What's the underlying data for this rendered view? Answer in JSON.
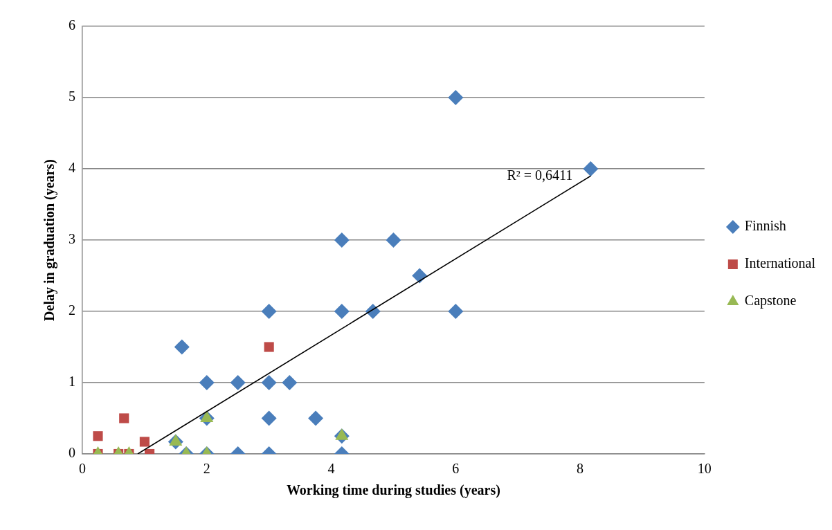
{
  "chart_data": {
    "type": "scatter",
    "xlabel": "Working time during studies (years)",
    "ylabel": "Delay in graduation (years)",
    "xlim": [
      0,
      10
    ],
    "xticks": [
      0,
      2,
      4,
      6,
      8,
      10
    ],
    "ylim": [
      0,
      6
    ],
    "yticks": [
      0,
      1,
      2,
      3,
      4,
      5,
      6
    ],
    "grid": "y",
    "legend": "right",
    "series": [
      {
        "name": "Finnish",
        "color": "#4a7ebb",
        "marker": "diamond",
        "x": [
          1.6,
          2,
          2.5,
          3,
          3.33,
          3,
          4.17,
          4.67,
          6,
          5.42,
          4.17,
          5,
          6,
          8.17,
          2,
          3,
          3.75,
          1.5,
          4.17,
          1.67,
          2,
          2.5,
          3,
          4.17
        ],
        "values": [
          1.5,
          1,
          1,
          1,
          1,
          2,
          2,
          2,
          2,
          2.5,
          3,
          3,
          5,
          4,
          0.5,
          0.5,
          0.5,
          0.17,
          0.25,
          0,
          0,
          0,
          0,
          0
        ]
      },
      {
        "name": "International",
        "color": "#be4b48",
        "marker": "square",
        "x": [
          0.25,
          0.25,
          0.67,
          0.58,
          0.75,
          1,
          1.08,
          3
        ],
        "values": [
          0.25,
          0,
          0.5,
          0,
          0,
          0.17,
          0,
          1.5
        ]
      },
      {
        "name": "Capstone",
        "color": "#98b954",
        "marker": "triangle",
        "x": [
          0.25,
          0.58,
          0.75,
          1.5,
          1.67,
          2,
          2,
          4.17
        ],
        "values": [
          0,
          0,
          0,
          0.17,
          0,
          0.5,
          0,
          0.25
        ]
      },
      {
        "type": "line",
        "color": "#000000",
        "marker": "none",
        "line_style": "solid",
        "x": [
          0.89,
          8.17
        ],
        "values": [
          0,
          3.9
        ]
      }
    ],
    "annotations": [
      {
        "text": "R² = 0,6411",
        "x": 8.17,
        "y": 3.9
      }
    ]
  }
}
